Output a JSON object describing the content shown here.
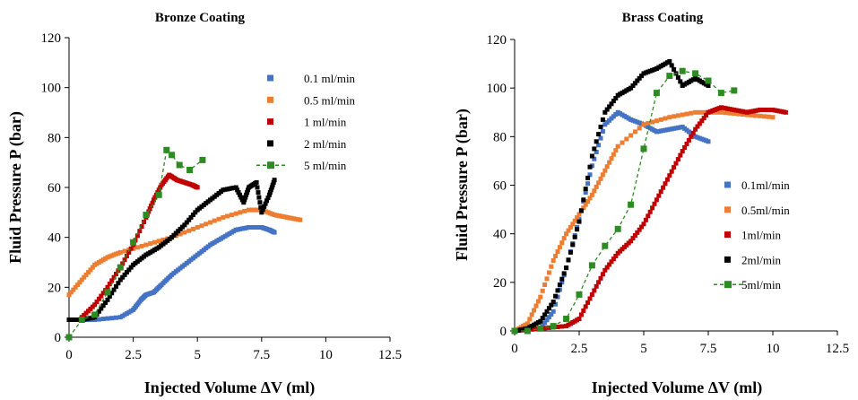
{
  "chart_data": [
    {
      "type": "scatter",
      "title": "Bronze Coating",
      "xlabel": "Injected Volume ΔV (ml)",
      "ylabel": "Fluid Pressure P (bar)",
      "xlim": [
        0,
        12.5
      ],
      "ylim": [
        0,
        120
      ],
      "xticks": [
        0,
        2.5,
        5,
        7.5,
        10,
        12.5
      ],
      "xtick_labels": [
        "0",
        "2.5",
        "5",
        "7.5",
        "10",
        "12.5"
      ],
      "yticks": [
        0,
        20,
        40,
        60,
        80,
        100,
        120
      ],
      "ytick_labels": [
        "0",
        "20",
        "40",
        "60",
        "80",
        "100",
        "120"
      ],
      "legend_position": "top-right",
      "series": [
        {
          "name": "0.1 ml/min",
          "color": "#4472C4",
          "marker": "square",
          "x": [
            0.2,
            1.0,
            2.0,
            2.5,
            2.8,
            3.0,
            3.3,
            3.6,
            4.0,
            4.5,
            5.0,
            5.5,
            6.0,
            6.5,
            7.0,
            7.5,
            7.8,
            8.0
          ],
          "y": [
            7,
            7,
            8,
            11,
            15,
            17,
            18,
            21,
            25,
            29,
            33,
            37,
            40,
            43,
            44,
            44,
            43,
            42
          ]
        },
        {
          "name": "0.5 ml/min",
          "color": "#ED7D31",
          "marker": "square",
          "x": [
            0,
            0.5,
            1.0,
            1.5,
            2.0,
            3.0,
            4.0,
            5.0,
            6.0,
            7.0,
            7.5,
            8.0,
            8.5,
            9.0
          ],
          "y": [
            17,
            23,
            29,
            32,
            34,
            37,
            40,
            44,
            48,
            51,
            51,
            49,
            48,
            47
          ]
        },
        {
          "name": "1 ml/min",
          "color": "#C00000",
          "marker": "square",
          "x": [
            0.5,
            1.0,
            1.5,
            2.0,
            2.5,
            3.0,
            3.3,
            3.6,
            3.9,
            4.2,
            4.5,
            4.8,
            5.0
          ],
          "y": [
            8,
            13,
            20,
            28,
            37,
            48,
            55,
            61,
            65,
            63,
            62,
            61,
            60
          ]
        },
        {
          "name": "2 ml/min",
          "color": "#000000",
          "marker": "square",
          "x": [
            0,
            0.5,
            1.0,
            1.5,
            2.0,
            2.5,
            3.0,
            3.5,
            4.0,
            4.5,
            5.0,
            5.5,
            6.0,
            6.5,
            6.8,
            7.0,
            7.3,
            7.5,
            7.8,
            8.0
          ],
          "y": [
            7,
            7,
            8,
            15,
            23,
            29,
            33,
            36,
            40,
            45,
            51,
            55,
            59,
            60,
            54,
            60,
            62,
            50,
            57,
            63
          ]
        },
        {
          "name": "5 ml/min",
          "color": "#2E8B23",
          "marker": "square",
          "line": "dashed",
          "x": [
            0,
            0.5,
            1.0,
            1.5,
            2.0,
            2.5,
            3.0,
            3.5,
            3.8,
            4.0,
            4.3,
            4.7,
            5.2
          ],
          "y": [
            0,
            7,
            9,
            18,
            28,
            38,
            49,
            57,
            75,
            73,
            69,
            67,
            71
          ]
        }
      ]
    },
    {
      "type": "scatter",
      "title": "Brass Coating",
      "xlabel": "Injected Volume ΔV (ml)",
      "ylabel": "Fluid Pressure P (bar)",
      "xlim": [
        0,
        12.5
      ],
      "ylim": [
        0,
        120
      ],
      "xticks": [
        0,
        2.5,
        5,
        7.5,
        10,
        12.5
      ],
      "xtick_labels": [
        "0",
        "2.5",
        "5",
        "7.5",
        "10",
        "12.5"
      ],
      "yticks": [
        0,
        20,
        40,
        60,
        80,
        100,
        120
      ],
      "ytick_labels": [
        "0",
        "20",
        "40",
        "60",
        "80",
        "100",
        "120"
      ],
      "legend_position": "right",
      "series": [
        {
          "name": "0.1ml/min",
          "color": "#4472C4",
          "marker": "square",
          "x": [
            0,
            1.0,
            1.5,
            2.0,
            2.5,
            3.0,
            3.5,
            4.0,
            4.5,
            5.0,
            5.5,
            6.0,
            6.5,
            7.0,
            7.5
          ],
          "y": [
            0,
            1,
            8,
            26,
            46,
            68,
            85,
            90,
            87,
            85,
            82,
            83,
            84,
            80,
            78
          ]
        },
        {
          "name": "0.5ml/min",
          "color": "#ED7D31",
          "marker": "square",
          "x": [
            0,
            0.5,
            1.0,
            1.5,
            2.0,
            2.5,
            3.0,
            3.5,
            4.0,
            5.0,
            6.0,
            7.0,
            8.0,
            9.0,
            10.0
          ],
          "y": [
            0,
            3,
            14,
            29,
            40,
            48,
            56,
            66,
            76,
            85,
            88,
            90,
            90,
            89,
            88
          ]
        },
        {
          "name": "1ml/min",
          "color": "#C00000",
          "marker": "square",
          "x": [
            0,
            1.0,
            2.0,
            2.5,
            3.0,
            3.5,
            4.0,
            4.5,
            5.0,
            5.5,
            6.0,
            6.5,
            7.0,
            7.5,
            8.0,
            8.5,
            9.0,
            9.5,
            10.0,
            10.5
          ],
          "y": [
            0,
            1,
            2,
            5,
            15,
            25,
            32,
            37,
            44,
            54,
            64,
            74,
            83,
            90,
            92,
            91,
            90,
            91,
            91,
            90
          ]
        },
        {
          "name": "2ml/min",
          "color": "#000000",
          "marker": "square",
          "x": [
            0,
            0.5,
            1.0,
            1.5,
            2.0,
            2.5,
            3.0,
            3.5,
            4.0,
            4.5,
            5.0,
            5.5,
            6.0,
            6.5,
            7.0,
            7.5
          ],
          "y": [
            0,
            1,
            4,
            12,
            26,
            45,
            72,
            90,
            97,
            100,
            106,
            108,
            111,
            101,
            104,
            101
          ]
        },
        {
          "name": "5ml/min",
          "color": "#2E8B23",
          "marker": "square",
          "line": "dashed",
          "x": [
            0,
            0.5,
            1.0,
            1.5,
            2.0,
            2.5,
            3.0,
            3.5,
            4.0,
            4.5,
            5.0,
            5.5,
            6.0,
            6.5,
            7.0,
            7.5,
            8.0,
            8.5
          ],
          "y": [
            0,
            0,
            1,
            2,
            5,
            15,
            27,
            35,
            42,
            52,
            75,
            98,
            105,
            107,
            106,
            103,
            98,
            99
          ]
        }
      ]
    }
  ]
}
